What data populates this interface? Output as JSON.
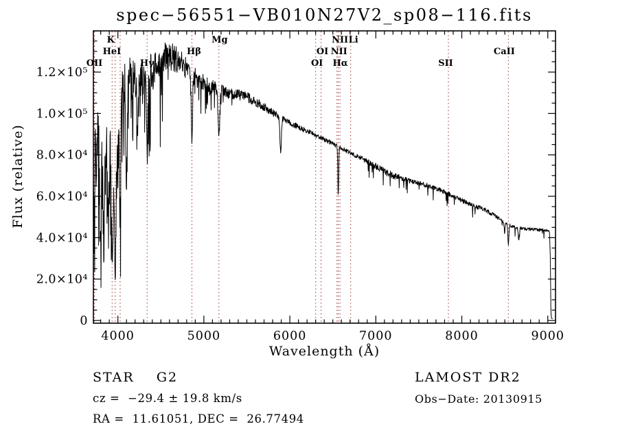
{
  "footer": {
    "left": {
      "class_line": "STAR    G2",
      "cz_line": "cz =  −29.4 ± 19.8 km/s",
      "radec_line": "RA =  11.61051, DEC =  26.77494"
    },
    "right": {
      "survey_line": "LAMOST DR2",
      "obsdate_line": "Obs−Date: 20130915"
    }
  },
  "chart_data": {
    "type": "line",
    "title": "spec−56551−VB010N27V2_sp08−116.fits",
    "xlabel": "Wavelength (Å)",
    "ylabel": "Flux (relative)",
    "xlim": [
      3715,
      9090
    ],
    "ylim": [
      -1300,
      139900
    ],
    "grid": "off",
    "legend": "none",
    "x_ticks": [
      4000,
      5000,
      6000,
      7000,
      8000,
      9000
    ],
    "x_minor_step": 100,
    "y_ticks": [
      {
        "value": 0,
        "label": "0"
      },
      {
        "value": 20000,
        "label": "2.0×10⁴"
      },
      {
        "value": 40000,
        "label": "4.0×10⁴"
      },
      {
        "value": 60000,
        "label": "6.0×10⁴"
      },
      {
        "value": 80000,
        "label": "8.0×10⁴"
      },
      {
        "value": 100000,
        "label": "1.0×10⁵"
      },
      {
        "value": 120000,
        "label": "1.2×10⁵"
      }
    ],
    "y_minor_step": 5000,
    "line_color": "#000000",
    "marker_color": "#8c2823",
    "marked_lines": [
      {
        "label": "OII",
        "wavelength": 3727,
        "row": 3,
        "label_dx": 0
      },
      {
        "label": "K",
        "wavelength": 3933,
        "row": 1,
        "label_dx": -2
      },
      {
        "label": "",
        "wavelength": 3968,
        "row": 0,
        "label_dx": 0
      },
      {
        "label": "HeI",
        "wavelength": 4026,
        "row": 2,
        "label_dx": -12
      },
      {
        "label": "Hγ",
        "wavelength": 4340,
        "row": 3,
        "label_dx": 0
      },
      {
        "label": "Hβ",
        "wavelength": 4861,
        "row": 2,
        "label_dx": 3
      },
      {
        "label": "Mg",
        "wavelength": 5175,
        "row": 1,
        "label_dx": 1
      },
      {
        "label": "OI",
        "wavelength": 6300,
        "row": 3,
        "label_dx": 2
      },
      {
        "label": "OI",
        "wavelength": 6363,
        "row": 2,
        "label_dx": 2
      },
      {
        "label": "NII",
        "wavelength": 6548,
        "row": 2,
        "label_dx": 3
      },
      {
        "label": "Hα",
        "wavelength": 6563,
        "row": 3,
        "label_dx": 3
      },
      {
        "label": "NII",
        "wavelength": 6583,
        "row": 1,
        "label_dx": 0
      },
      {
        "label": "Li",
        "wavelength": 6707,
        "row": 1,
        "label_dx": 4
      },
      {
        "label": "SII",
        "wavelength": 7844,
        "row": 3,
        "label_dx": -4
      },
      {
        "label": "CaII",
        "wavelength": 8542,
        "row": 2,
        "label_dx": -6
      }
    ],
    "spectrum": {
      "step_angstrom": 3.5,
      "seed": 20130915,
      "range": [
        3716,
        9058
      ],
      "continuum": [
        [
          3716,
          76000
        ],
        [
          3760,
          79000
        ],
        [
          3800,
          77000
        ],
        [
          3840,
          76000
        ],
        [
          3880,
          83000
        ],
        [
          3915,
          86000
        ],
        [
          3990,
          88000
        ],
        [
          4020,
          95000
        ],
        [
          4045,
          105000
        ],
        [
          4075,
          113000
        ],
        [
          4110,
          116500
        ],
        [
          4200,
          118000
        ],
        [
          4300,
          119000
        ],
        [
          4400,
          121000
        ],
        [
          4480,
          125000
        ],
        [
          4560,
          128000
        ],
        [
          4650,
          127000
        ],
        [
          4720,
          125000
        ],
        [
          4800,
          121500
        ],
        [
          4900,
          117500
        ],
        [
          5000,
          115000
        ],
        [
          5100,
          113000
        ],
        [
          5200,
          111000
        ],
        [
          5350,
          109500
        ],
        [
          5500,
          108000
        ],
        [
          5650,
          104500
        ],
        [
          5800,
          100500
        ],
        [
          5950,
          96500
        ],
        [
          6100,
          93500
        ],
        [
          6250,
          90500
        ],
        [
          6400,
          87500
        ],
        [
          6563,
          84000
        ],
        [
          6700,
          81000
        ],
        [
          6850,
          78000
        ],
        [
          7000,
          74500
        ],
        [
          7150,
          71000
        ],
        [
          7300,
          68500
        ],
        [
          7450,
          66800
        ],
        [
          7600,
          65200
        ],
        [
          7750,
          63000
        ],
        [
          7844,
          61200
        ],
        [
          7950,
          59000
        ],
        [
          8100,
          56000
        ],
        [
          8280,
          53300
        ],
        [
          8420,
          49500
        ],
        [
          8540,
          46300
        ],
        [
          8650,
          44800
        ],
        [
          8750,
          44200
        ],
        [
          8900,
          43800
        ],
        [
          9000,
          43500
        ],
        [
          9020,
          42800
        ],
        [
          9030,
          30000
        ],
        [
          9036,
          5000
        ],
        [
          9042,
          1100
        ],
        [
          9058,
          800
        ]
      ],
      "noise_profile": [
        [
          3716,
          0.3
        ],
        [
          3900,
          0.27
        ],
        [
          4000,
          0.22
        ],
        [
          4045,
          0.14
        ],
        [
          4100,
          0.11
        ],
        [
          4300,
          0.085
        ],
        [
          4500,
          0.06
        ],
        [
          4700,
          0.05
        ],
        [
          5000,
          0.035
        ],
        [
          5300,
          0.025
        ],
        [
          5800,
          0.018
        ],
        [
          6300,
          0.013
        ],
        [
          6800,
          0.013
        ],
        [
          7150,
          0.026
        ],
        [
          7400,
          0.016
        ],
        [
          7800,
          0.018
        ],
        [
          8300,
          0.021
        ],
        [
          8700,
          0.016
        ],
        [
          9058,
          0.018
        ]
      ],
      "absorption_lines": [
        {
          "wavelength": 3797,
          "floor": 45000,
          "sigma": 8
        },
        {
          "wavelength": 3835,
          "floor": 38000,
          "sigma": 8
        },
        {
          "wavelength": 3889,
          "floor": 46000,
          "sigma": 7
        },
        {
          "wavelength": 3933,
          "floor": 31000,
          "sigma": 11
        },
        {
          "wavelength": 3968,
          "floor": 32000,
          "sigma": 11
        },
        {
          "wavelength": 4026,
          "floor": 52000,
          "sigma": 7
        },
        {
          "wavelength": 4101,
          "floor": 68000,
          "sigma": 9
        },
        {
          "wavelength": 4227,
          "floor": 92000,
          "sigma": 5
        },
        {
          "wavelength": 4340,
          "floor": 80000,
          "sigma": 8
        },
        {
          "wavelength": 4861,
          "floor": 87000,
          "sigma": 7
        },
        {
          "wavelength": 5175,
          "floor": 89000,
          "sigma": 10
        },
        {
          "wavelength": 5893,
          "floor": 82000,
          "sigma": 9
        },
        {
          "wavelength": 6563,
          "floor": 60000,
          "sigma": 5
        },
        {
          "wavelength": 8498,
          "floor": 42500,
          "sigma": 5
        },
        {
          "wavelength": 8542,
          "floor": 37000,
          "sigma": 6
        },
        {
          "wavelength": 8662,
          "floor": 38500,
          "sigma": 6
        }
      ],
      "forest": [
        {
          "range": [
            3716,
            4060
          ],
          "prob": 0.28,
          "min_depth": 0.12,
          "max_depth": 0.55
        },
        {
          "range": [
            4060,
            4520
          ],
          "prob": 0.13,
          "min_depth": 0.1,
          "max_depth": 0.3
        },
        {
          "range": [
            4520,
            5400
          ],
          "prob": 0.05,
          "min_depth": 0.04,
          "max_depth": 0.12
        },
        {
          "range": [
            6900,
            9000
          ],
          "prob": 0.04,
          "min_depth": 0.04,
          "max_depth": 0.1
        }
      ]
    }
  }
}
